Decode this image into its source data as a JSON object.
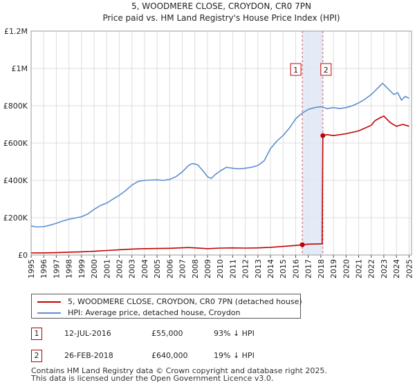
{
  "chart_data": {
    "type": "line",
    "title": "5, WOODMERE CLOSE, CROYDON, CR0 7PN",
    "subtitle": "Price paid vs. HM Land Registry's House Price Index (HPI)",
    "xlabel": "",
    "ylabel": "",
    "xlim": [
      1995,
      2025.2
    ],
    "ylim": [
      0,
      1200000
    ],
    "y_ticks": [
      {
        "value": 0,
        "label": "£0"
      },
      {
        "value": 200000,
        "label": "£200K"
      },
      {
        "value": 400000,
        "label": "£400K"
      },
      {
        "value": 600000,
        "label": "£600K"
      },
      {
        "value": 800000,
        "label": "£800K"
      },
      {
        "value": 1000000,
        "label": "£1M"
      },
      {
        "value": 1200000,
        "label": "£1.2M"
      }
    ],
    "x_ticks": [
      "1995",
      "1996",
      "1997",
      "1998",
      "1999",
      "2000",
      "2001",
      "2002",
      "2003",
      "2004",
      "2005",
      "2006",
      "2007",
      "2008",
      "2009",
      "2010",
      "2011",
      "2012",
      "2013",
      "2014",
      "2015",
      "2016",
      "2017",
      "2018",
      "2019",
      "2020",
      "2021",
      "2022",
      "2023",
      "2024",
      "2025"
    ],
    "grid": true,
    "shaded_region": {
      "from": 2016.53,
      "to": 2018.16
    },
    "series": [
      {
        "name": "5, WOODMERE CLOSE, CROYDON, CR0 7PN (detached house)",
        "color": "#c00000",
        "x": [
          1995,
          1996,
          1997,
          1998,
          1999,
          2000,
          2001,
          2002,
          2003,
          2004,
          2005,
          2006,
          2007,
          2007.5,
          2008,
          2009,
          2010,
          2011,
          2012,
          2013,
          2014,
          2015,
          2016,
          2016.53,
          2017,
          2018.1,
          2018.16,
          2018.5,
          2019,
          2020,
          2021,
          2022,
          2022.3,
          2022.7,
          2023,
          2023.5,
          2024,
          2024.5,
          2025
        ],
        "values": [
          11000,
          11500,
          12500,
          15000,
          17000,
          20000,
          24000,
          28000,
          32000,
          34000,
          35000,
          36000,
          38500,
          40000,
          38000,
          34000,
          37000,
          38000,
          37000,
          38000,
          41000,
          46000,
          51000,
          55000,
          58000,
          60000,
          640000,
          645000,
          640000,
          650000,
          665000,
          695000,
          720000,
          735000,
          745000,
          710000,
          690000,
          700000,
          690000
        ]
      },
      {
        "name": "HPI: Average price, detached house, Croydon",
        "color": "#5b8fd1",
        "x": [
          1995,
          1995.5,
          1996,
          1996.5,
          1997,
          1997.5,
          1998,
          1998.5,
          1999,
          1999.5,
          2000,
          2000.5,
          2001,
          2001.5,
          2002,
          2002.5,
          2003,
          2003.5,
          2004,
          2004.5,
          2005,
          2005.5,
          2006,
          2006.5,
          2007,
          2007.5,
          2007.8,
          2008.2,
          2008.6,
          2009,
          2009.3,
          2009.6,
          2010,
          2010.5,
          2011,
          2011.5,
          2012,
          2012.5,
          2013,
          2013.5,
          2014,
          2014.5,
          2015,
          2015.5,
          2016,
          2016.5,
          2017,
          2017.5,
          2018,
          2018.5,
          2019,
          2019.5,
          2020,
          2020.5,
          2021,
          2021.5,
          2022,
          2022.3,
          2022.6,
          2022.9,
          2023.2,
          2023.5,
          2023.8,
          2024.1,
          2024.4,
          2024.7,
          2025
        ],
        "values": [
          155000,
          150000,
          152000,
          160000,
          170000,
          182000,
          192000,
          198000,
          205000,
          220000,
          245000,
          265000,
          278000,
          300000,
          320000,
          345000,
          375000,
          395000,
          400000,
          402000,
          403000,
          400000,
          405000,
          420000,
          445000,
          480000,
          490000,
          485000,
          455000,
          420000,
          410000,
          430000,
          450000,
          470000,
          465000,
          462000,
          465000,
          470000,
          480000,
          505000,
          570000,
          610000,
          640000,
          680000,
          730000,
          760000,
          780000,
          790000,
          795000,
          785000,
          790000,
          785000,
          790000,
          800000,
          815000,
          835000,
          860000,
          880000,
          900000,
          920000,
          900000,
          880000,
          860000,
          870000,
          830000,
          850000,
          840000
        ]
      }
    ],
    "annotations": [
      {
        "label": "1",
        "x": 2016.53,
        "value": 55000
      },
      {
        "label": "2",
        "x": 2018.16,
        "value": 640000
      }
    ],
    "legend_position": "bottom"
  },
  "legend": {
    "items": [
      {
        "label": "5, WOODMERE CLOSE, CROYDON, CR0 7PN (detached house)",
        "color": "#c00000"
      },
      {
        "label": "HPI: Average price, detached house, Croydon",
        "color": "#5b8fd1"
      }
    ]
  },
  "transactions": [
    {
      "num": "1",
      "date": "12-JUL-2016",
      "price": "£55,000",
      "hpi": "93% ↓ HPI"
    },
    {
      "num": "2",
      "date": "26-FEB-2018",
      "price": "£640,000",
      "hpi": "19% ↓ HPI"
    }
  ],
  "footer": {
    "line1": "Contains HM Land Registry data © Crown copyright and database right 2025.",
    "line2": "This data is licensed under the Open Government Licence v3.0."
  }
}
